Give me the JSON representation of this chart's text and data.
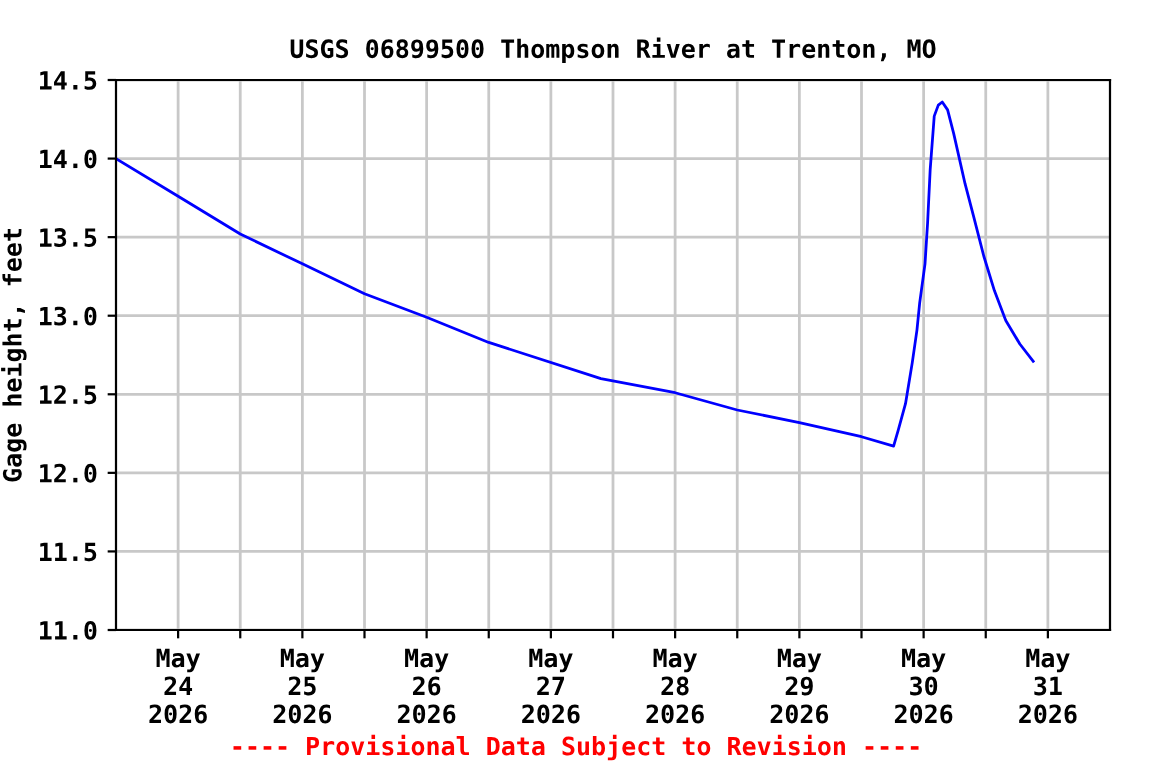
{
  "chart_data": {
    "type": "line",
    "title": "USGS 06899500 Thompson River at Trenton, MO",
    "ylabel": "Gage height, feet",
    "annotations": [
      "---- Provisional Data Subject to Revision ----"
    ],
    "x": [
      "2026-05-24T00:00",
      "2026-05-24T12:00",
      "2026-05-25T00:00",
      "2026-05-25T12:00",
      "2026-05-26T00:00",
      "2026-05-26T12:00",
      "2026-05-27T00:00",
      "2026-05-27T21:40",
      "2026-05-28T12:00",
      "2026-05-29T00:00",
      "2026-05-29T12:00",
      "2026-05-30T00:00",
      "2026-05-30T06:12",
      "2026-05-30T07:05",
      "2026-05-30T08:30",
      "2026-05-30T09:48",
      "2026-05-30T10:43",
      "2026-05-30T11:14",
      "2026-05-30T12:16",
      "2026-05-30T12:46",
      "2026-05-30T13:16",
      "2026-05-30T14:03",
      "2026-05-30T14:50",
      "2026-05-30T15:36",
      "2026-05-30T16:38",
      "2026-05-30T17:48",
      "2026-05-30T20:00",
      "2026-05-30T21:40",
      "2026-05-30T23:37",
      "2026-05-31T01:40",
      "2026-05-31T03:52",
      "2026-05-31T06:35",
      "2026-05-31T09:10"
    ],
    "series": [
      {
        "color": "#0000ff",
        "values": [
          14.0,
          13.76,
          13.52,
          13.33,
          13.14,
          12.99,
          12.83,
          12.6,
          12.51,
          12.4,
          12.32,
          12.23,
          12.17,
          12.27,
          12.44,
          12.7,
          12.91,
          13.08,
          13.33,
          13.59,
          13.93,
          14.27,
          14.34,
          14.36,
          14.31,
          14.16,
          13.84,
          13.63,
          13.38,
          13.16,
          12.97,
          12.82,
          12.71
        ]
      }
    ],
    "xlim": [
      "2026-05-24T00:00",
      "2026-06-01T00:00"
    ],
    "xticks": [
      {
        "value": "2026-05-24T12:00",
        "label": "May\n24\n2026"
      },
      {
        "value": "2026-05-25T00:00",
        "label": null
      },
      {
        "value": "2026-05-25T12:00",
        "label": "May\n25\n2026"
      },
      {
        "value": "2026-05-26T00:00",
        "label": null
      },
      {
        "value": "2026-05-26T12:00",
        "label": "May\n26\n2026"
      },
      {
        "value": "2026-05-27T00:00",
        "label": null
      },
      {
        "value": "2026-05-27T12:00",
        "label": "May\n27\n2026"
      },
      {
        "value": "2026-05-28T00:00",
        "label": null
      },
      {
        "value": "2026-05-28T12:00",
        "label": "May\n28\n2026"
      },
      {
        "value": "2026-05-29T00:00",
        "label": null
      },
      {
        "value": "2026-05-29T12:00",
        "label": "May\n29\n2026"
      },
      {
        "value": "2026-05-30T00:00",
        "label": null
      },
      {
        "value": "2026-05-30T12:00",
        "label": "May\n30\n2026"
      },
      {
        "value": "2026-05-31T00:00",
        "label": null
      },
      {
        "value": "2026-05-31T12:00",
        "label": "May\n31\n2026"
      }
    ],
    "ylim": [
      11.0,
      14.5
    ],
    "yticks": [
      {
        "value": 11.0,
        "label": "11.0"
      },
      {
        "value": 11.5,
        "label": "11.5"
      },
      {
        "value": 12.0,
        "label": "12.0"
      },
      {
        "value": 12.5,
        "label": "12.5"
      },
      {
        "value": 13.0,
        "label": "13.0"
      },
      {
        "value": 13.5,
        "label": "13.5"
      },
      {
        "value": 14.0,
        "label": "14.0"
      },
      {
        "value": 14.5,
        "label": "14.5"
      }
    ],
    "grid": true,
    "legend": false,
    "line_style": "solid"
  }
}
